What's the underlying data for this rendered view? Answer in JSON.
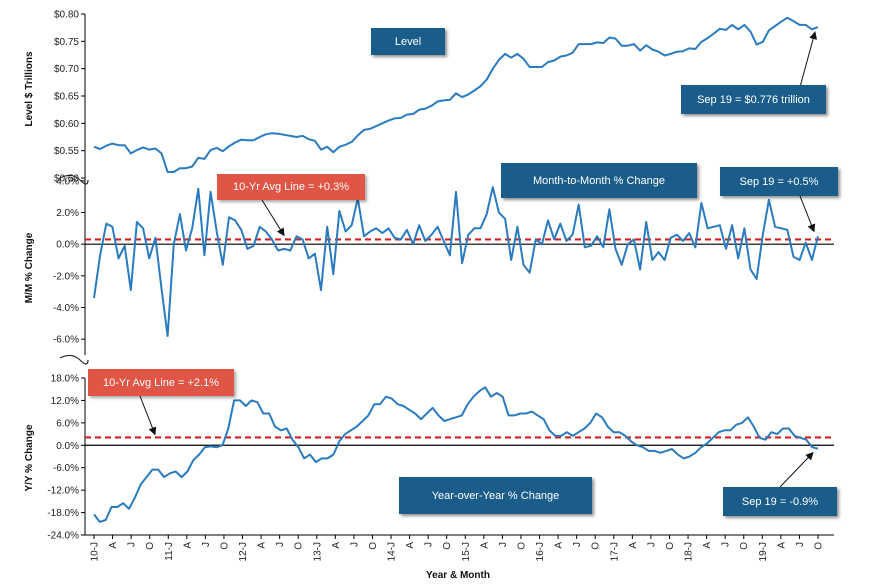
{
  "chart_data": [
    {
      "type": "line",
      "panel": "level",
      "title": "Level",
      "ylabel": "Level $ Trillions",
      "ylim": [
        0.5,
        0.8
      ],
      "yticks": [
        "$0.50",
        "$0.55",
        "$0.60",
        "$0.65",
        "$0.70",
        "$0.75",
        "$0.80"
      ],
      "ytick_values": [
        0.5,
        0.55,
        0.6,
        0.65,
        0.7,
        0.75,
        0.8
      ],
      "grid": false,
      "series": [
        {
          "color": "#2a7bbf",
          "values": [
            0.557,
            0.553,
            0.559,
            0.563,
            0.56,
            0.56,
            0.545,
            0.551,
            0.556,
            0.552,
            0.554,
            0.545,
            0.511,
            0.511,
            0.518,
            0.518,
            0.521,
            0.537,
            0.535,
            0.551,
            0.555,
            0.549,
            0.558,
            0.565,
            0.57,
            0.569,
            0.569,
            0.575,
            0.58,
            0.582,
            0.581,
            0.579,
            0.577,
            0.575,
            0.577,
            0.571,
            0.568,
            0.552,
            0.557,
            0.547,
            0.557,
            0.561,
            0.566,
            0.578,
            0.588,
            0.59,
            0.595,
            0.6,
            0.605,
            0.609,
            0.61,
            0.616,
            0.617,
            0.625,
            0.627,
            0.632,
            0.64,
            0.642,
            0.643,
            0.655,
            0.648,
            0.653,
            0.66,
            0.668,
            0.68,
            0.7,
            0.716,
            0.727,
            0.72,
            0.727,
            0.718,
            0.703,
            0.703,
            0.703,
            0.712,
            0.715,
            0.722,
            0.724,
            0.729,
            0.745,
            0.745,
            0.745,
            0.748,
            0.747,
            0.757,
            0.755,
            0.742,
            0.742,
            0.745,
            0.733,
            0.743,
            0.735,
            0.731,
            0.724,
            0.727,
            0.731,
            0.732,
            0.737,
            0.736,
            0.749,
            0.756,
            0.764,
            0.773,
            0.771,
            0.78,
            0.772,
            0.78,
            0.768,
            0.744,
            0.749,
            0.77,
            0.778,
            0.786,
            0.793,
            0.787,
            0.78,
            0.78,
            0.772,
            0.776
          ]
        }
      ]
    },
    {
      "type": "line",
      "panel": "mm",
      "title": "Month-to-Month % Change",
      "ylabel": "M/M % Change",
      "ylim": [
        -7,
        5
      ],
      "yticks": [
        "-6.0%",
        "-4.0%",
        "-2.0%",
        "0.0%",
        "2.0%",
        "4.0%"
      ],
      "ytick_values": [
        -6,
        -4,
        -2,
        0,
        2,
        4
      ],
      "avg_line": 0.3,
      "grid": false,
      "series": [
        {
          "color": "#2a7bbf",
          "values": [
            -3.4,
            -0.7,
            1.3,
            1.1,
            -0.9,
            -0.1,
            -2.9,
            1.4,
            1.0,
            -0.9,
            0.4,
            -2.8,
            -5.8,
            0.0,
            1.9,
            -0.4,
            1.0,
            3.5,
            -0.7,
            3.3,
            0.8,
            -1.3,
            1.7,
            1.5,
            0.9,
            -0.3,
            -0.1,
            1.1,
            0.8,
            0.3,
            -0.4,
            -0.3,
            -0.4,
            0.5,
            0.3,
            -0.9,
            -0.6,
            -2.9,
            1.1,
            -1.9,
            2.1,
            0.8,
            1.2,
            2.9,
            0.5,
            0.8,
            1.0,
            0.7,
            1.0,
            0.4,
            0.3,
            0.9,
            0.0,
            1.2,
            0.2,
            0.6,
            1.1,
            0.2,
            -0.7,
            3.3,
            -1.2,
            0.6,
            1.0,
            1.0,
            1.9,
            3.6,
            2.0,
            1.6,
            -1.0,
            1.1,
            -1.3,
            -1.8,
            0.3,
            0.0,
            1.5,
            0.3,
            1.3,
            0.2,
            0.6,
            2.5,
            -0.2,
            -0.1,
            0.5,
            -0.2,
            2.2,
            -0.3,
            -1.3,
            0.0,
            0.3,
            -1.6,
            1.4,
            -1.0,
            -0.5,
            -1.0,
            0.4,
            0.6,
            0.2,
            0.7,
            -0.2,
            2.6,
            1.0,
            1.1,
            1.2,
            -0.3,
            1.2,
            -0.9,
            1.0,
            -1.6,
            -2.2,
            0.6,
            2.8,
            1.1,
            1.0,
            0.9,
            -0.8,
            -1.0,
            0.1,
            -1.0,
            0.5
          ]
        }
      ]
    },
    {
      "type": "line",
      "panel": "yy",
      "title": "Year-over-Year % Change",
      "ylabel": "Y/Y % Change",
      "xlabel": "Year & Month",
      "ylim": [
        -24,
        18
      ],
      "yticks": [
        "-24.0%",
        "-18.0%",
        "-12.0%",
        "-6.0%",
        "0.0%",
        "6.0%",
        "12.0%",
        "18.0%"
      ],
      "ytick_values": [
        -24,
        -18,
        -12,
        -6,
        0,
        6,
        12,
        18
      ],
      "avg_line": 2.1,
      "grid": false,
      "xticks": [
        "10-J",
        "A",
        "J",
        "O",
        "11-J",
        "A",
        "J",
        "O",
        "12-J",
        "A",
        "J",
        "O",
        "13-J",
        "A",
        "J",
        "O",
        "14-J",
        "A",
        "J",
        "O",
        "15-J",
        "A",
        "J",
        "O",
        "16-J",
        "A",
        "J",
        "O",
        "17-J",
        "A",
        "J",
        "O",
        "18-J",
        "A",
        "J",
        "O",
        "19-J",
        "A",
        "J",
        "O"
      ],
      "series": [
        {
          "color": "#2a7bbf",
          "values": [
            -18.5,
            -20.5,
            -20.0,
            -16.5,
            -16.5,
            -15.5,
            -17.0,
            -14.0,
            -10.5,
            -8.5,
            -6.5,
            -6.5,
            -8.5,
            -7.5,
            -7.0,
            -8.5,
            -7.0,
            -4.0,
            -2.5,
            -0.5,
            -0.3,
            -0.5,
            0.0,
            4.5,
            12.0,
            12.0,
            10.5,
            12.0,
            11.5,
            8.5,
            8.5,
            5.0,
            4.0,
            4.5,
            1.5,
            -0.5,
            -3.5,
            -2.5,
            -4.5,
            -3.5,
            -3.5,
            -2.5,
            1.0,
            3.0,
            4.0,
            5.0,
            6.5,
            8.0,
            11.0,
            11.0,
            13.0,
            12.5,
            11.0,
            10.5,
            9.5,
            8.5,
            7.0,
            8.5,
            10.0,
            8.0,
            6.5,
            7.0,
            7.5,
            8.0,
            11.0,
            13.0,
            14.5,
            15.5,
            13.0,
            14.0,
            13.0,
            8.0,
            8.0,
            8.5,
            8.5,
            9.0,
            8.0,
            7.0,
            4.0,
            2.5,
            2.5,
            3.5,
            2.5,
            3.5,
            4.5,
            6.0,
            8.5,
            7.5,
            5.0,
            3.5,
            3.5,
            2.5,
            1.0,
            0.0,
            -0.5,
            -1.5,
            -1.5,
            -2.0,
            -1.5,
            -1.0,
            -2.5,
            -3.5,
            -3.0,
            -2.0,
            -0.5,
            0.5,
            2.0,
            3.5,
            4.0,
            4.0,
            5.5,
            6.0,
            7.5,
            5.0,
            2.0,
            1.5,
            3.5,
            3.0,
            4.5,
            4.5,
            2.5,
            2.0,
            1.5,
            -0.5,
            -0.9
          ]
        }
      ]
    }
  ],
  "labels": {
    "level_title": "Level",
    "level_callout": "Sep 19 = $0.776 trillion",
    "mm_title": "Month-to-Month % Change",
    "mm_avg": "10-Yr Avg Line = +0.3%",
    "mm_callout": "Sep 19 = +0.5%",
    "yy_title": "Year-over-Year % Change",
    "yy_avg": "10-Yr Avg Line = +2.1%",
    "yy_callout": "Sep 19 = -0.9%",
    "xlabel": "Year & Month"
  },
  "colors": {
    "line": "#2a7bbf",
    "avg_line": "#d42020",
    "callout_blue": "#1a5d8a",
    "callout_red": "#e05545",
    "axis": "#000000"
  }
}
